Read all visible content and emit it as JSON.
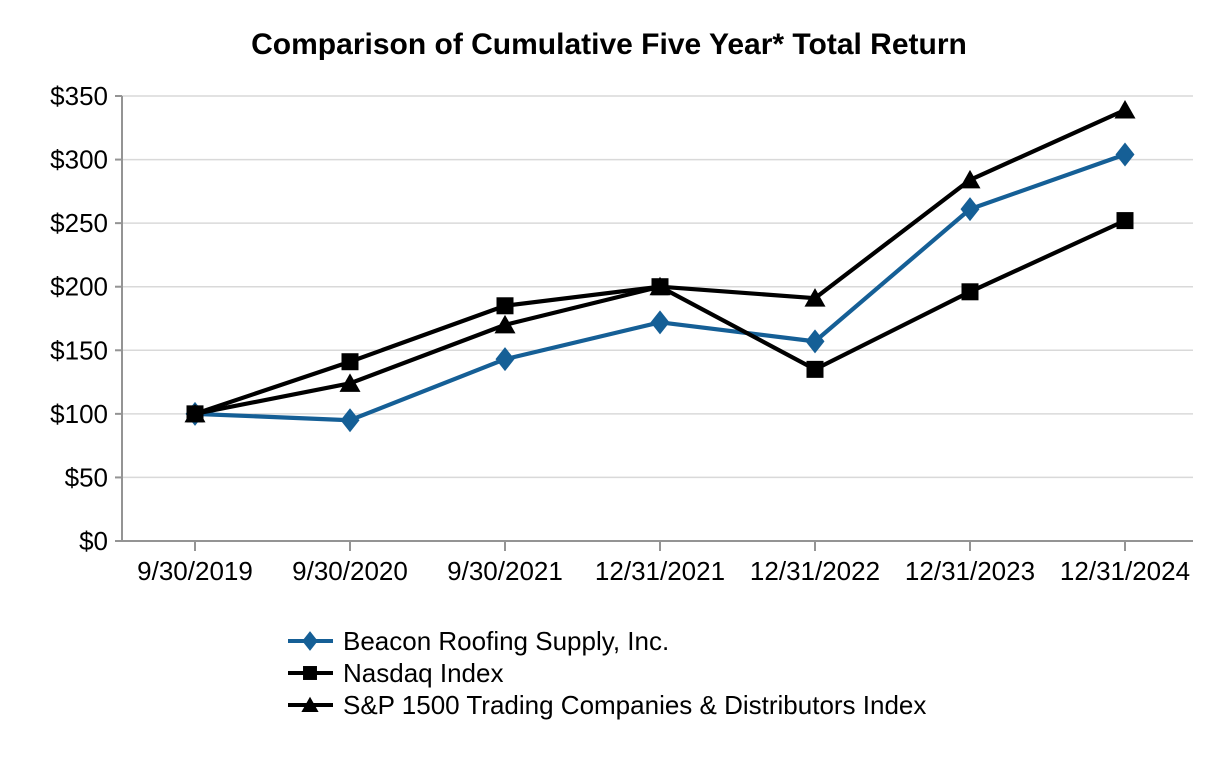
{
  "chart_data": {
    "type": "line",
    "title": "Comparison of Cumulative Five Year* Total Return",
    "categories": [
      "9/30/2019",
      "9/30/2020",
      "9/30/2021",
      "12/31/2021",
      "12/31/2022",
      "12/31/2023",
      "12/31/2024"
    ],
    "series": [
      {
        "name": "Beacon Roofing Supply, Inc.",
        "marker": "diamond",
        "color": "#155F96",
        "values": [
          100,
          95,
          143,
          172,
          157,
          261,
          304
        ]
      },
      {
        "name": "Nasdaq Index",
        "marker": "square",
        "color": "#000000",
        "values": [
          100,
          141,
          185,
          200,
          135,
          196,
          252
        ]
      },
      {
        "name": "S&P 1500 Trading Companies & Distributors Index",
        "marker": "triangle",
        "color": "#000000",
        "values": [
          100,
          124,
          170,
          200,
          191,
          284,
          339
        ]
      }
    ],
    "y_axis": {
      "min": 0,
      "max": 350,
      "step": 50,
      "tick_labels": [
        "$0",
        "$50",
        "$100",
        "$150",
        "$200",
        "$250",
        "$300",
        "$350"
      ]
    },
    "grid": "horizontal",
    "legend_position": "bottom-left",
    "colors": {
      "gridline": "#D9D9D9",
      "axis": "#949494",
      "text": "#000000",
      "background": "#FFFFFF"
    }
  }
}
